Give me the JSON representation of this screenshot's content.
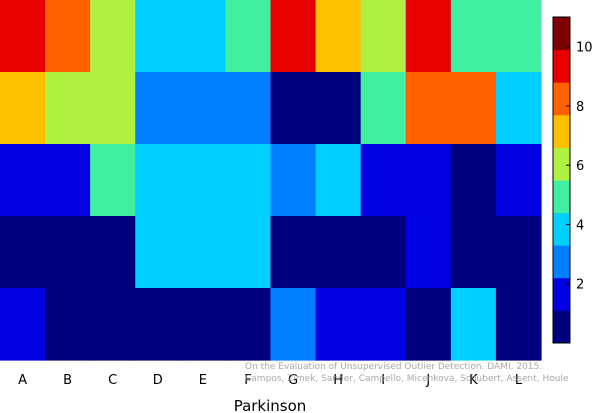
{
  "chart_data": {
    "type": "heatmap",
    "title": "",
    "xlabel": "Parkinson",
    "ylabel": "",
    "columns": [
      "A",
      "B",
      "C",
      "D",
      "E",
      "F",
      "G",
      "H",
      "I",
      "J",
      "K",
      "L"
    ],
    "rows": 5,
    "values": [
      [
        9,
        8,
        6,
        4,
        4,
        5,
        9,
        7,
        6,
        9,
        5,
        5
      ],
      [
        7,
        6,
        6,
        3,
        3,
        3,
        1,
        1,
        5,
        8,
        8,
        4
      ],
      [
        2,
        2,
        5,
        4,
        4,
        4,
        3,
        4,
        2,
        2,
        1,
        2
      ],
      [
        1,
        1,
        1,
        4,
        4,
        4,
        1,
        1,
        1,
        2,
        1,
        1
      ],
      [
        2,
        1,
        1,
        1,
        1,
        1,
        3,
        2,
        2,
        1,
        4,
        1
      ]
    ],
    "color_range": [
      0,
      11
    ],
    "colorbar_ticks": [
      2,
      4,
      6,
      8,
      10
    ],
    "colormap": "jet",
    "grid": false
  },
  "credit": {
    "line1": "On the Evaluation of Unsupervised Outlier Detection. DAMI, 2015.",
    "line2": "Campos, Zimek, Sander, Campello, Micenková, Schubert, Assent, Houle"
  }
}
